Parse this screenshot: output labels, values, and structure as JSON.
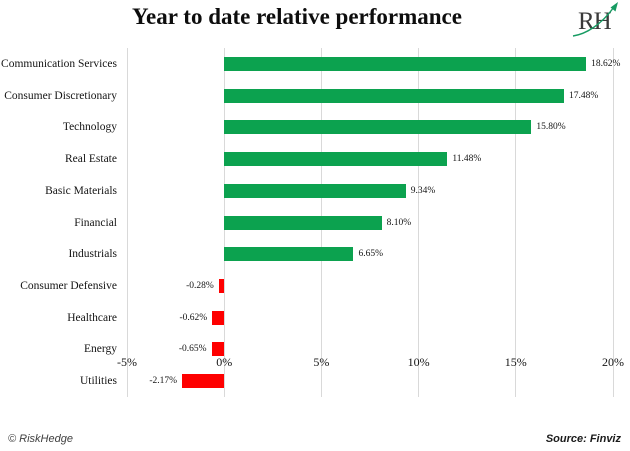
{
  "header": {
    "title": "Year to date relative performance",
    "logo_text": "RH"
  },
  "chart_data": {
    "type": "bar",
    "orientation": "horizontal",
    "title": "Year to date relative performance",
    "categories": [
      "Communication Services",
      "Consumer Discretionary",
      "Technology",
      "Real Estate",
      "Basic Materials",
      "Financial",
      "Industrials",
      "Consumer Defensive",
      "Healthcare",
      "Energy",
      "Utilities"
    ],
    "values": [
      18.62,
      17.48,
      15.8,
      11.48,
      9.34,
      8.1,
      6.65,
      -0.28,
      -0.62,
      -0.65,
      -2.17
    ],
    "value_labels": [
      "18.62%",
      "17.48%",
      "15.80%",
      "11.48%",
      "9.34%",
      "8.10%",
      "6.65%",
      "-0.28%",
      "-0.62%",
      "-0.65%",
      "-2.17%"
    ],
    "xlabel": "",
    "ylabel": "",
    "xlim": [
      -5,
      20
    ],
    "xticks": [
      -5,
      0,
      5,
      10,
      15,
      20
    ],
    "xtick_labels": [
      "-5%",
      "0%",
      "5%",
      "10%",
      "15%",
      "20%"
    ],
    "grid": "vertical",
    "legend": "none",
    "positive_color": "#0ca24f",
    "negative_color": "#fe0000",
    "gridline_color": "#d9d9d9"
  },
  "footer": {
    "credit": "© RiskHedge",
    "source": "Source: Finviz"
  }
}
